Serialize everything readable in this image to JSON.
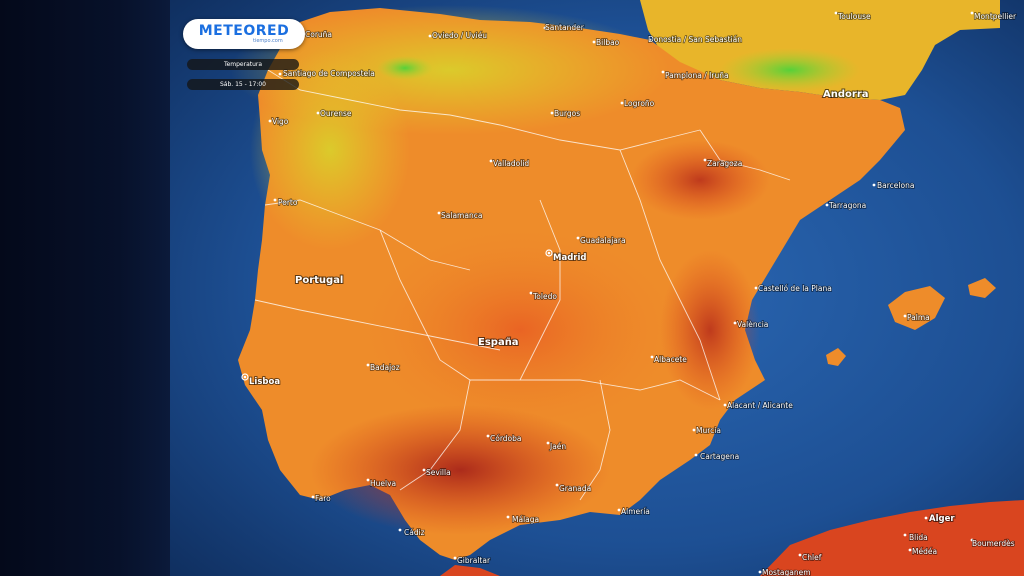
{
  "brand": {
    "name": "METEORED",
    "sub": "tiempo.com"
  },
  "controls": {
    "layer": "Temperatura",
    "time": "Sáb. 15 - 17:00"
  },
  "colors": {
    "sea": "#1d4f93",
    "land_cool": "#e7c928",
    "land_warm": "#ee8c2a",
    "land_hot": "#e2461c",
    "land_hottest": "#b22a19",
    "mountain_green": "#5ad13c"
  },
  "country_labels": [
    "Portugal",
    "España",
    "Andorra"
  ],
  "cities": [
    "Coruña",
    "Oviedo / Uviéu",
    "Santander",
    "Bilbao",
    "Donostia / San Sebastián",
    "Toulouse",
    "Montpellier",
    "Santiago de Compostela",
    "Pamplona / Iruña",
    "Vigo",
    "Ourense",
    "Burgos",
    "Logroño",
    "Valladolid",
    "Zaragoza",
    "Barcelona",
    "Tarragona",
    "Porto",
    "Salamanca",
    "Guadalajara",
    "Madrid",
    "Toledo",
    "Castelló de la Plana",
    "València",
    "Palma",
    "Lisboa",
    "Badajoz",
    "Albacete",
    "Alacant / Alicante",
    "Córdoba",
    "Jaén",
    "Murcia",
    "Cartagena",
    "Huelva",
    "Sevilla",
    "Granada",
    "Almería",
    "Faro",
    "Cádiz",
    "Málaga",
    "Gibraltar",
    "Alger",
    "Blida",
    "Médéa",
    "Chlef",
    "Mostaganem",
    "Boumerdès"
  ]
}
